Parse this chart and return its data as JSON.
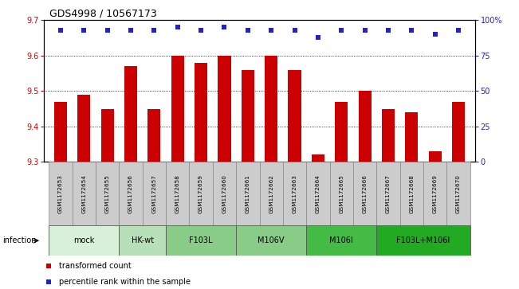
{
  "title": "GDS4998 / 10567173",
  "samples": [
    "GSM1172653",
    "GSM1172654",
    "GSM1172655",
    "GSM1172656",
    "GSM1172657",
    "GSM1172658",
    "GSM1172659",
    "GSM1172660",
    "GSM1172661",
    "GSM1172662",
    "GSM1172663",
    "GSM1172664",
    "GSM1172665",
    "GSM1172666",
    "GSM1172667",
    "GSM1172668",
    "GSM1172669",
    "GSM1172670"
  ],
  "values": [
    9.47,
    9.49,
    9.45,
    9.57,
    9.45,
    9.6,
    9.58,
    9.6,
    9.56,
    9.6,
    9.56,
    9.32,
    9.47,
    9.5,
    9.45,
    9.44,
    9.33,
    9.47
  ],
  "percentile_values": [
    93,
    93,
    93,
    93,
    93,
    95,
    93,
    95,
    93,
    93,
    93,
    88,
    93,
    93,
    93,
    93,
    90,
    93
  ],
  "bar_color": "#CC0000",
  "dot_color": "#2222CC",
  "ylim_left": [
    9.3,
    9.7
  ],
  "ylim_right": [
    0,
    100
  ],
  "yticks_left": [
    9.3,
    9.4,
    9.5,
    9.6,
    9.7
  ],
  "yticks_right": [
    0,
    25,
    50,
    75,
    100
  ],
  "groups": [
    {
      "label": "mock",
      "start": 0,
      "end": 3,
      "color": "#d8f0d8"
    },
    {
      "label": "HK-wt",
      "start": 3,
      "end": 5,
      "color": "#b8e0b8"
    },
    {
      "label": "F103L",
      "start": 5,
      "end": 8,
      "color": "#88cc88"
    },
    {
      "label": "M106V",
      "start": 8,
      "end": 11,
      "color": "#88cc88"
    },
    {
      "label": "M106I",
      "start": 11,
      "end": 14,
      "color": "#44bb44"
    },
    {
      "label": "F103L+M106I",
      "start": 14,
      "end": 18,
      "color": "#22aa22"
    }
  ],
  "infection_label": "infection",
  "legend_bar_label": "transformed count",
  "legend_dot_label": "percentile rank within the sample",
  "left_axis_color": "#CC0000",
  "right_axis_color": "#2222CC",
  "bar_width": 0.55,
  "sample_box_color": "#cccccc",
  "grid_color": "#555555"
}
